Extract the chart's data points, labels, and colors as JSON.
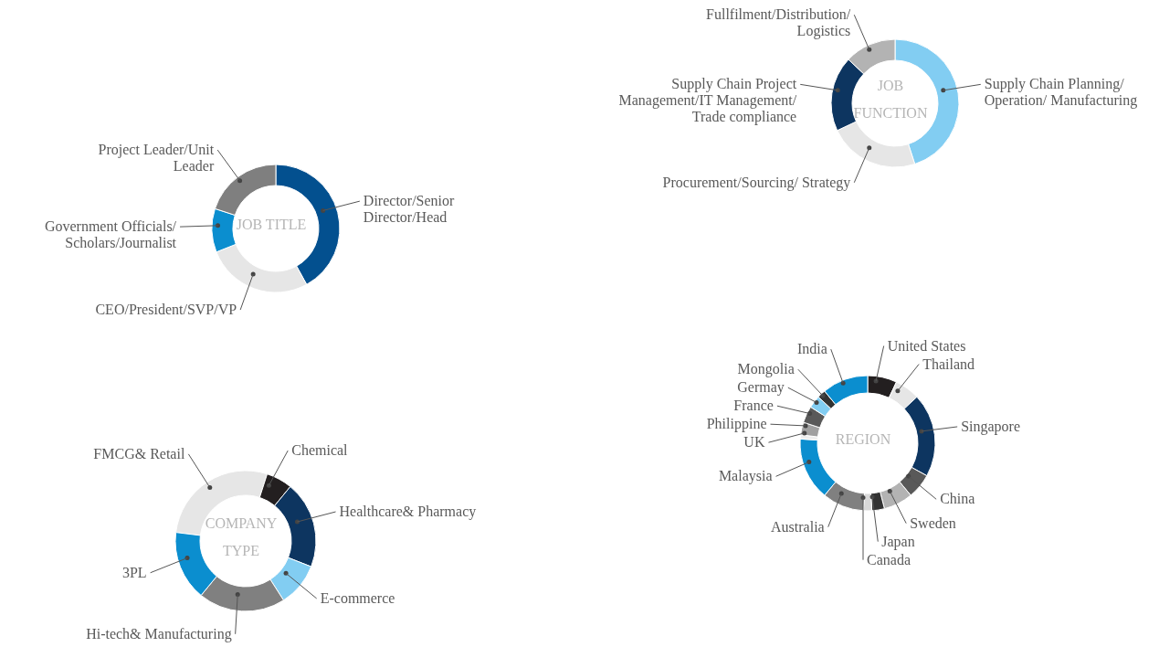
{
  "chart_data": [
    {
      "type": "donut",
      "title": "JOB TITLE",
      "categories": [
        "Director/Senior Director/Head",
        "CEO/President/SVP/VP",
        "Government Officials/Scholars/Journalist",
        "Project Leader/Unit Leader"
      ],
      "values": [
        42,
        27,
        11,
        20
      ],
      "colors": [
        "#03508f",
        "#e6e6e6",
        "#0b8ecf",
        "#7f7f7f"
      ]
    },
    {
      "type": "donut",
      "title": "JOB FUNCTION",
      "categories": [
        "Supply  Chain Planning/ Operation/ Manufacturing",
        "Procurement/Sourcing/ Strategy",
        "Supply Chain Project Management/IT Management/ Trade compliance",
        "Fullfilment/Distribution/ Logistics"
      ],
      "values": [
        45,
        23,
        19,
        13
      ],
      "colors": [
        "#82cdf2",
        "#e6e6e6",
        "#0d3560",
        "#b3b3b3"
      ]
    },
    {
      "type": "donut",
      "title": "REGION",
      "categories": [
        "United States",
        "Thailand",
        "Singapore",
        "China",
        "Sweden",
        "Japan",
        "Canada",
        "Australia",
        "Malaysia",
        "UK",
        "Philippine",
        "France",
        "Germay",
        "Mongolia",
        "India"
      ],
      "values": [
        7,
        6,
        20,
        6,
        7,
        3,
        2,
        10,
        15,
        1,
        3,
        4,
        3,
        2,
        11
      ],
      "colors": [
        "#231f20",
        "#e6e6e6",
        "#0d3560",
        "#595959",
        "#b3b3b3",
        "#333333",
        "#d9d9d9",
        "#808080",
        "#0b8ecf",
        "#eeeeee",
        "#a0a0a0",
        "#595959",
        "#82cdf2",
        "#333333",
        "#0b8ecf"
      ]
    },
    {
      "type": "donut",
      "title": "COMPANY TYPE",
      "categories": [
        "FMCG& Retail",
        "Chemical",
        "Healthcare& Pharmacy",
        "E-commerce",
        "Hi-tech& Manufacturing",
        "3PL"
      ],
      "values": [
        28,
        6,
        20,
        10,
        20,
        16
      ],
      "colors": [
        "#e6e6e6",
        "#231f20",
        "#0d3560",
        "#82cdf2",
        "#808080",
        "#0b8ecf"
      ]
    }
  ]
}
